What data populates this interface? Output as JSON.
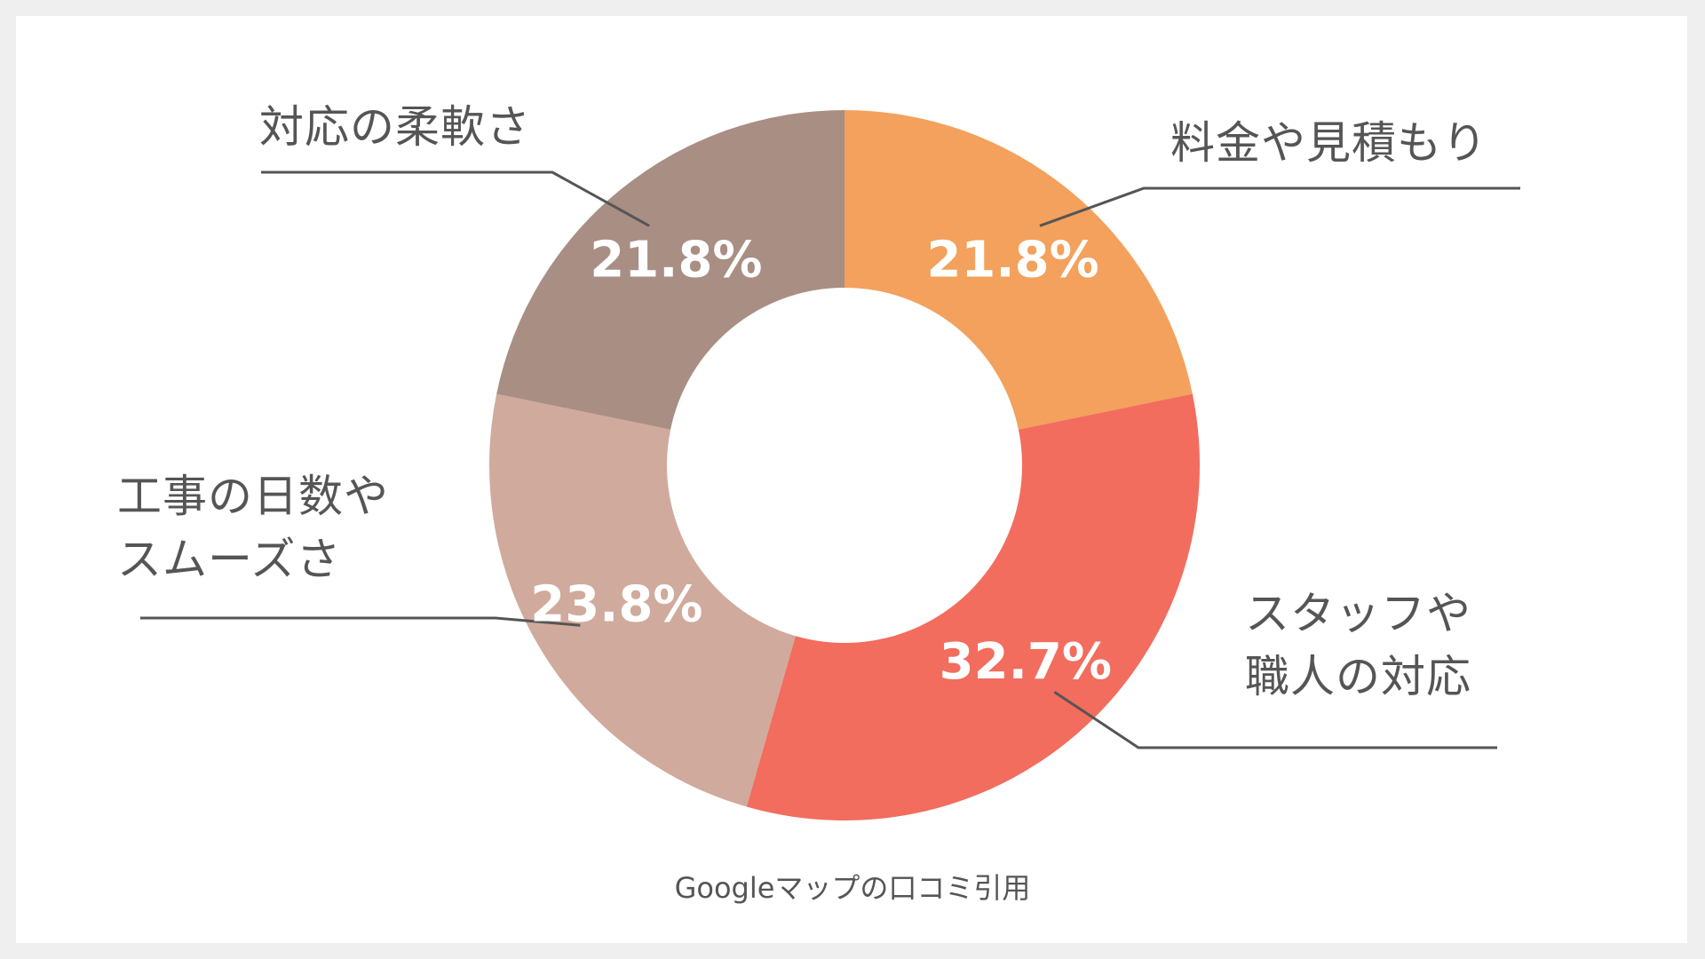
{
  "chart_data": {
    "type": "pie",
    "variant": "donut",
    "categories": [
      "料金や見積もり",
      "スタッフや\n職人の対応",
      "工事の日数や\nスムーズさ",
      "対応の柔軟さ"
    ],
    "values": [
      21.8,
      32.7,
      23.8,
      21.8
    ],
    "value_labels": [
      "21.8%",
      "32.7%",
      "23.8%",
      "21.8%"
    ],
    "colors": [
      "#f3a15c",
      "#f26d5e",
      "#d0aa9c",
      "#a98e83"
    ],
    "start_angle_deg": 0,
    "direction": "clockwise"
  },
  "source_note": "Googleマップの口コミ引用"
}
